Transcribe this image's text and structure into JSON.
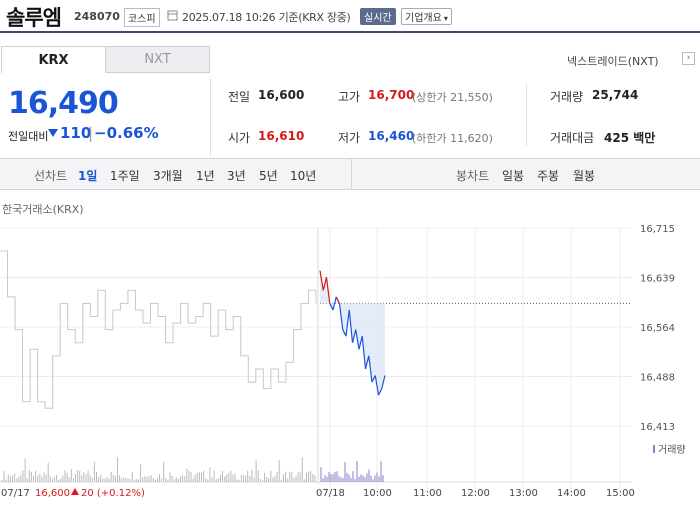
{
  "header": {
    "stock_name": "솔루엠",
    "stock_code": "248070",
    "market": "코스피",
    "date_text": "2025.07.18 10:26 기준(KRX 장중)",
    "realtime_label": "실시간",
    "company_label": "기업개요",
    "accent": "#3a4a6a"
  },
  "tabs": {
    "krx": "KRX",
    "nxt": "NXT",
    "nxt_link": "넥스트레이드(NXT)",
    "nxt_arrow": "›"
  },
  "quote": {
    "price": "16,490",
    "change_label": "전일대비",
    "change_icon": "down-triangle-icon",
    "change_amount": "110",
    "change_sep": "|",
    "change_percent": "−0.66%"
  },
  "stats": {
    "prev_label": "전일",
    "prev_value": "16,600",
    "high_label": "고가",
    "high_value": "16,700",
    "upper_limit": "(상한가 21,550)",
    "volume_label": "거래량",
    "volume_value": "25,744",
    "open_label": "시가",
    "open_value": "16,610",
    "low_label": "저가",
    "low_value": "16,460",
    "lower_limit": "(하한가 11,620)",
    "amount_label": "거래대금",
    "amount_value": "425 백만"
  },
  "period_bar": {
    "line_label": "선차트",
    "line_items": [
      "1일",
      "1주일",
      "3개월",
      "1년",
      "3년",
      "5년",
      "10년"
    ],
    "active": "1일",
    "candle_label": "봉차트",
    "candle_items": [
      "일봉",
      "주봉",
      "월봉"
    ]
  },
  "chart_data": {
    "type": "line",
    "title": "한국거래소(KRX)",
    "y_ticks": [
      "16,715",
      "16,639",
      "16,564",
      "16,488",
      "16,413"
    ],
    "ylim": [
      16413,
      16715
    ],
    "x_ticks": [
      "07/17",
      "07/18",
      "10:00",
      "11:00",
      "12:00",
      "13:00",
      "14:00",
      "15:00"
    ],
    "prev_day_label": "07/17",
    "prev_close_text": "16,600",
    "prev_change_icon": "up-triangle-icon",
    "prev_change_text": "20 (+0.12%)",
    "reference_line": 16600,
    "volume_legend": "거래량",
    "series": [
      {
        "name": "07/17",
        "color": "#c8c8c8",
        "values": [
          16680,
          16610,
          16560,
          16450,
          16530,
          16450,
          16440,
          16520,
          16600,
          16560,
          16540,
          16600,
          16580,
          16620,
          16560,
          16590,
          16600,
          16620,
          16590,
          16570,
          16600,
          16580,
          16540,
          16570,
          16600,
          16570,
          16580,
          16600,
          16550,
          16590,
          16560,
          16580,
          16520,
          16480,
          16500,
          16470,
          16500,
          16480,
          16510,
          16560,
          16600,
          16620,
          16600
        ]
      },
      {
        "name": "07/18",
        "color": "#1a55d6",
        "up_color": "#d61a1a",
        "values": [
          16650,
          16620,
          16640,
          16600,
          16590,
          16610,
          16600,
          16560,
          16550,
          16590,
          16540,
          16560,
          16530,
          16550,
          16500,
          16520,
          16480,
          16490,
          16460,
          16470,
          16490
        ]
      }
    ]
  }
}
